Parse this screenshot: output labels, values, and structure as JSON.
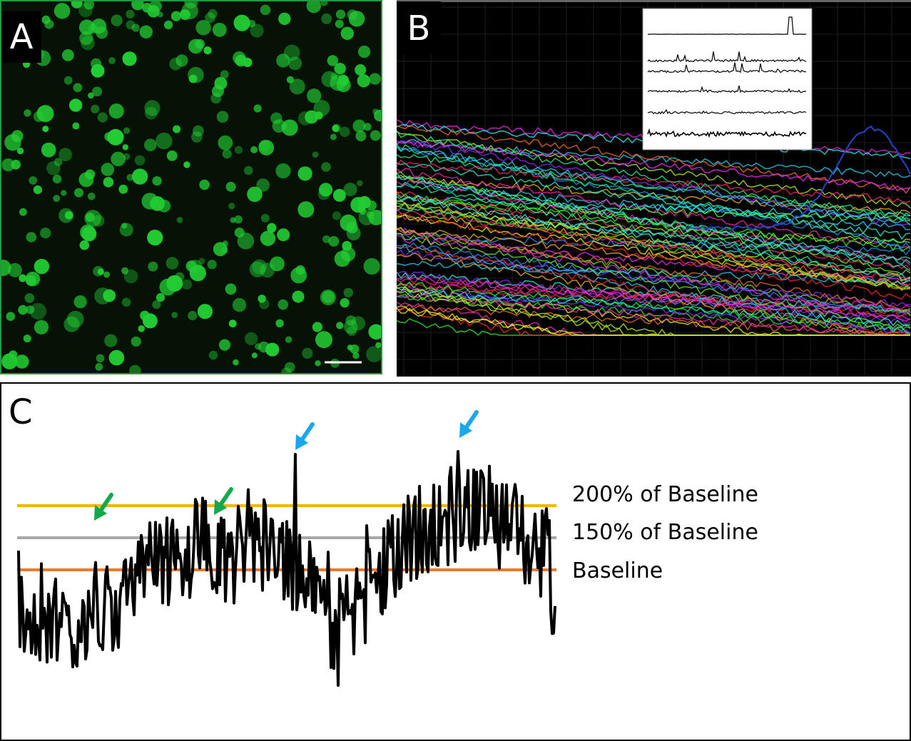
{
  "panels": {
    "a": {
      "letter": "A"
    },
    "b": {
      "letter": "B"
    },
    "c": {
      "letter": "C"
    }
  },
  "thresholds": {
    "high": {
      "label": "200% of Baseline",
      "color": "#f5b400"
    },
    "mid": {
      "label": "150% of Baseline",
      "color": "#a8a8a8"
    },
    "base": {
      "label": "Baseline",
      "color": "#e87a30"
    }
  },
  "colors": {
    "cells": "#22cc33",
    "trace": "#000000",
    "arrow_blue": "#1aa7ec",
    "arrow_green": "#13a84a"
  }
}
